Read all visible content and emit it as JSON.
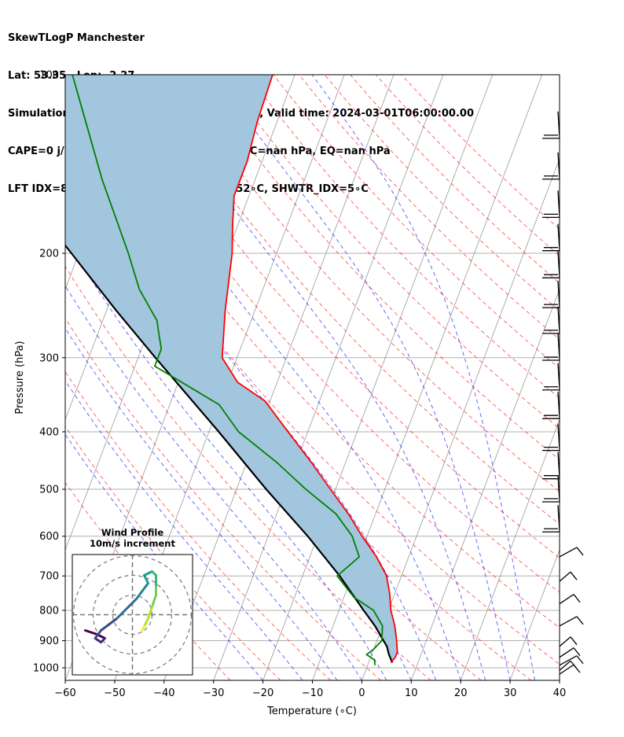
{
  "title_lines": [
    "SkewTLogP Manchester",
    "Lat: 53.35   Lon: -2.27",
    "Simulation start time: 2024-03-01_00:00:00, Valid time: 2024-03-01T06:00:00.00",
    "CAPE=0 j/kg, CIN=0 j/kg, LCL=921 hPa, LFC=nan hPa, EQ=nan hPa",
    "LFT IDX=8∘C, K IDX=9∘C, TOTAL TOTS=52∘C, SHWTR_IDX=5∘C"
  ],
  "hodograph": {
    "title": "Wind Profile",
    "subtitle": "10m/s increment"
  },
  "colors": {
    "temperature": "#ff0000",
    "dewpoint": "#008000",
    "parcel": "#000000",
    "shading": "#a3c6df",
    "dry_adiabat": "#ff0000",
    "moist_adiabat": "#0000ff",
    "mixing_ratio": "#0000ff",
    "isotherm": "#808080",
    "zero_isotherm": "#9400d3"
  },
  "chart_data": {
    "type": "line",
    "title": "SkewTLogP Manchester",
    "xlabel": "Temperature (∘C)",
    "ylabel": "Pressure (hPa)",
    "xlim": [
      -60,
      40
    ],
    "ylim": [
      1050,
      100
    ],
    "y_scale": "log",
    "x_ticks": [
      "−60",
      "−50",
      "−40",
      "−30",
      "−20",
      "−10",
      "0",
      "10",
      "20",
      "30",
      "40"
    ],
    "y_ticks": [
      "100",
      "200",
      "300",
      "400",
      "500",
      "600",
      "700",
      "800",
      "900",
      "1000"
    ],
    "grid": true,
    "series": [
      {
        "role": "temperature",
        "points": [
          [
            100,
            -64.5
          ],
          [
            120,
            -64
          ],
          [
            140,
            -63
          ],
          [
            160,
            -63
          ],
          [
            180,
            -61
          ],
          [
            200,
            -59
          ],
          [
            250,
            -56
          ],
          [
            300,
            -53
          ],
          [
            330,
            -48
          ],
          [
            355,
            -41
          ],
          [
            400,
            -34
          ],
          [
            450,
            -27
          ],
          [
            500,
            -21
          ],
          [
            550,
            -15.5
          ],
          [
            600,
            -11
          ],
          [
            650,
            -6.5
          ],
          [
            700,
            -3
          ],
          [
            750,
            -1
          ],
          [
            800,
            0.5
          ],
          [
            850,
            2.5
          ],
          [
            900,
            4
          ],
          [
            940,
            5
          ],
          [
            960,
            5
          ],
          [
            980,
            4.5
          ]
        ]
      },
      {
        "role": "dewpoint",
        "points": [
          [
            100,
            -105
          ],
          [
            150,
            -91
          ],
          [
            200,
            -80
          ],
          [
            230,
            -75
          ],
          [
            260,
            -69
          ],
          [
            270,
            -68
          ],
          [
            290,
            -66
          ],
          [
            310,
            -66
          ],
          [
            360,
            -50
          ],
          [
            400,
            -44
          ],
          [
            450,
            -34
          ],
          [
            500,
            -26
          ],
          [
            550,
            -18
          ],
          [
            600,
            -13
          ],
          [
            650,
            -10
          ],
          [
            700,
            -13
          ],
          [
            760,
            -8
          ],
          [
            800,
            -3
          ],
          [
            850,
            0
          ],
          [
            900,
            1
          ],
          [
            930,
            0
          ],
          [
            950,
            -1
          ],
          [
            970,
            1
          ],
          [
            990,
            1.5
          ]
        ]
      },
      {
        "role": "parcel",
        "points": [
          [
            100,
            -129.5
          ],
          [
            150,
            -109
          ],
          [
            200,
            -91.5
          ],
          [
            250,
            -78
          ],
          [
            300,
            -66.5
          ],
          [
            400,
            -48
          ],
          [
            500,
            -34
          ],
          [
            600,
            -22
          ],
          [
            700,
            -12.5
          ],
          [
            800,
            -5
          ],
          [
            850,
            -1.5
          ],
          [
            921,
            2.5
          ],
          [
            950,
            3.5
          ],
          [
            980,
            4.8
          ]
        ]
      }
    ],
    "wind_barbs_hPa": [
      128,
      150,
      174,
      198,
      220,
      247,
      273,
      303,
      340,
      380,
      430,
      480,
      525,
      590,
      650,
      715,
      780,
      850,
      920,
      960,
      990,
      1010,
      1025
    ],
    "hodograph": {
      "ring_increment_ms": 10,
      "rings": 3
    }
  }
}
